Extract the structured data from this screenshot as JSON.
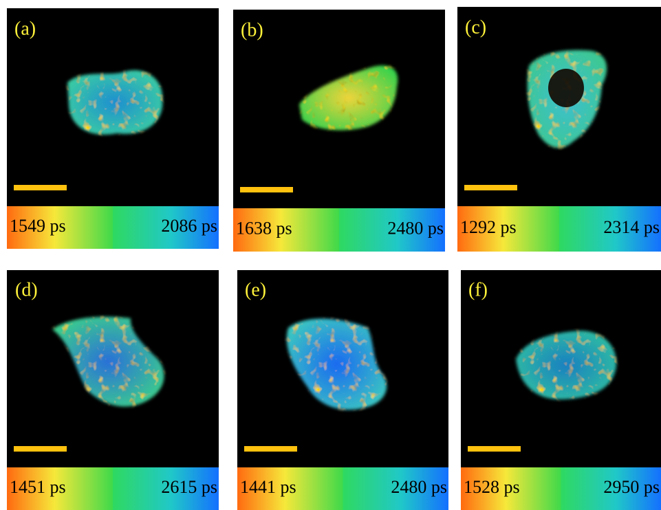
{
  "panels": [
    {
      "label": "(a)",
      "min_label": "1549 ps",
      "max_label": "2086 ps"
    },
    {
      "label": "(b)",
      "min_label": "1638 ps",
      "max_label": "2480 ps"
    },
    {
      "label": "(c)",
      "min_label": "1292 ps",
      "max_label": "2314 ps"
    },
    {
      "label": "(d)",
      "min_label": "1451 ps",
      "max_label": "2615 ps"
    },
    {
      "label": "(e)",
      "min_label": "1441 ps",
      "max_label": "2480 ps"
    },
    {
      "label": "(f)",
      "min_label": "1528 ps",
      "max_label": "2950 ps"
    }
  ]
}
